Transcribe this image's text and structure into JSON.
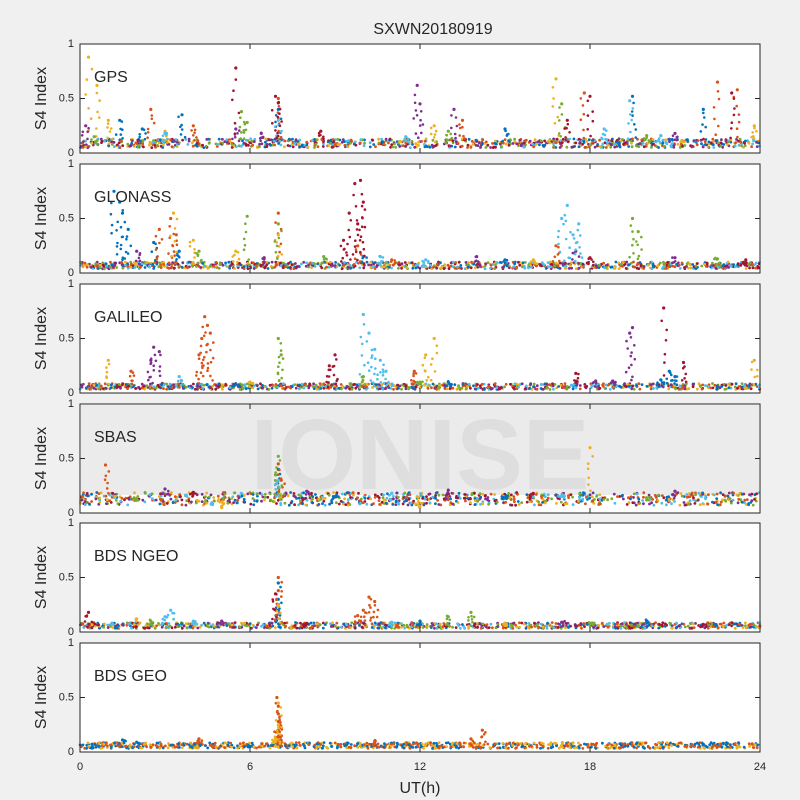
{
  "figure_title": "SXWN20180919",
  "x_axis_label": "UT(h)",
  "watermark": "IONISE",
  "colors": {
    "blue": "#0072BD",
    "orange": "#D95319",
    "yellow": "#EDB120",
    "purple": "#7E2F8E",
    "green": "#77AC30",
    "cyan": "#4DBEEE",
    "darkred": "#A2142F"
  },
  "chart_data": [
    {
      "type": "scatter",
      "title": "GPS",
      "ylabel": "S4 Index",
      "xlim": [
        0,
        24
      ],
      "ylim": [
        0,
        1
      ],
      "xticks": [
        0,
        6,
        12,
        18,
        24
      ],
      "yticks": [
        0,
        0.5,
        1
      ],
      "ytick_labels": [
        "0",
        "0.5",
        "1"
      ],
      "baseline": 0.09,
      "series": [
        {
          "color": "blue",
          "points": [
            [
              1.4,
              0.3
            ],
            [
              2.2,
              0.22
            ],
            [
              3.6,
              0.35
            ],
            [
              7.0,
              0.4
            ],
            [
              15.0,
              0.22
            ],
            [
              19.5,
              0.52
            ],
            [
              22.0,
              0.4
            ]
          ]
        },
        {
          "color": "orange",
          "points": [
            [
              2.5,
              0.4
            ],
            [
              4.0,
              0.25
            ],
            [
              7.0,
              0.5
            ],
            [
              13.5,
              0.3
            ],
            [
              17.8,
              0.55
            ],
            [
              22.5,
              0.65
            ],
            [
              23.2,
              0.58
            ]
          ]
        },
        {
          "color": "yellow",
          "points": [
            [
              0.3,
              0.88
            ],
            [
              0.6,
              0.62
            ],
            [
              1.0,
              0.3
            ],
            [
              3.0,
              0.2
            ],
            [
              12.5,
              0.25
            ],
            [
              16.8,
              0.68
            ],
            [
              23.8,
              0.25
            ]
          ]
        },
        {
          "color": "purple",
          "points": [
            [
              0.2,
              0.25
            ],
            [
              5.5,
              0.22
            ],
            [
              6.4,
              0.18
            ],
            [
              11.9,
              0.62
            ],
            [
              12.0,
              0.45
            ],
            [
              13.2,
              0.4
            ],
            [
              21.0,
              0.18
            ]
          ]
        },
        {
          "color": "green",
          "points": [
            [
              0.5,
              0.15
            ],
            [
              5.7,
              0.38
            ],
            [
              5.9,
              0.28
            ],
            [
              13.0,
              0.2
            ],
            [
              17.0,
              0.45
            ],
            [
              20.0,
              0.16
            ]
          ]
        },
        {
          "color": "cyan",
          "points": [
            [
              3.0,
              0.18
            ],
            [
              7.0,
              0.3
            ],
            [
              11.5,
              0.15
            ],
            [
              18.5,
              0.22
            ],
            [
              19.4,
              0.48
            ],
            [
              20.5,
              0.16
            ]
          ]
        },
        {
          "color": "darkred",
          "points": [
            [
              5.5,
              0.78
            ],
            [
              6.9,
              0.52
            ],
            [
              7.0,
              0.46
            ],
            [
              8.5,
              0.2
            ],
            [
              17.2,
              0.3
            ],
            [
              18.0,
              0.52
            ],
            [
              23.0,
              0.55
            ]
          ]
        }
      ]
    },
    {
      "type": "scatter",
      "title": "GLONASS",
      "ylabel": "S4 Index",
      "xlim": [
        0,
        24
      ],
      "ylim": [
        0,
        1
      ],
      "xticks": [
        0,
        6,
        12,
        18,
        24
      ],
      "yticks": [
        0,
        0.5,
        1
      ],
      "ytick_labels": [
        "0",
        "0.5",
        "1"
      ],
      "baseline": 0.07,
      "series": [
        {
          "color": "blue",
          "points": [
            [
              1.2,
              0.75
            ],
            [
              1.4,
              0.65
            ],
            [
              1.5,
              0.55
            ],
            [
              1.7,
              0.4
            ],
            [
              2.6,
              0.28
            ],
            [
              3.5,
              0.2
            ],
            [
              10.0,
              0.15
            ],
            [
              15.0,
              0.12
            ]
          ]
        },
        {
          "color": "orange",
          "points": [
            [
              2.8,
              0.4
            ],
            [
              3.2,
              0.5
            ],
            [
              3.4,
              0.35
            ],
            [
              7.0,
              0.55
            ],
            [
              9.8,
              0.25
            ],
            [
              11.0,
              0.12
            ],
            [
              16.8,
              0.25
            ]
          ]
        },
        {
          "color": "yellow",
          "points": [
            [
              3.3,
              0.55
            ],
            [
              4.0,
              0.3
            ],
            [
              5.5,
              0.2
            ],
            [
              7.0,
              0.35
            ],
            [
              16.0,
              0.12
            ]
          ]
        },
        {
          "color": "purple",
          "points": [
            [
              2.0,
              0.2
            ],
            [
              6.5,
              0.14
            ],
            [
              14.0,
              0.15
            ],
            [
              17.5,
              0.2
            ],
            [
              21.0,
              0.14
            ]
          ]
        },
        {
          "color": "green",
          "points": [
            [
              4.2,
              0.2
            ],
            [
              5.9,
              0.52
            ],
            [
              7.0,
              0.45
            ],
            [
              8.6,
              0.15
            ],
            [
              19.5,
              0.5
            ],
            [
              19.7,
              0.38
            ],
            [
              22.5,
              0.13
            ]
          ]
        },
        {
          "color": "cyan",
          "points": [
            [
              17.0,
              0.5
            ],
            [
              17.2,
              0.62
            ],
            [
              17.4,
              0.35
            ],
            [
              17.6,
              0.45
            ],
            [
              10.6,
              0.15
            ],
            [
              12.2,
              0.12
            ]
          ]
        },
        {
          "color": "darkred",
          "points": [
            [
              9.7,
              0.82
            ],
            [
              9.9,
              0.85
            ],
            [
              10.0,
              0.65
            ],
            [
              9.5,
              0.55
            ],
            [
              9.8,
              0.45
            ],
            [
              9.3,
              0.3
            ],
            [
              18.0,
              0.14
            ],
            [
              23.5,
              0.12
            ]
          ]
        }
      ]
    },
    {
      "type": "scatter",
      "title": "GALILEO",
      "ylabel": "S4 Index",
      "xlim": [
        0,
        24
      ],
      "ylim": [
        0,
        1
      ],
      "xticks": [
        0,
        6,
        12,
        18,
        24
      ],
      "yticks": [
        0,
        0.5,
        1
      ],
      "ytick_labels": [
        "0",
        "0.5",
        "1"
      ],
      "baseline": 0.06,
      "series": [
        {
          "color": "blue",
          "points": [
            [
              5.5,
              0.08
            ],
            [
              13.0,
              0.1
            ],
            [
              20.5,
              0.12
            ],
            [
              20.8,
              0.2
            ],
            [
              21.0,
              0.15
            ]
          ]
        },
        {
          "color": "orange",
          "points": [
            [
              4.4,
              0.7
            ],
            [
              4.5,
              0.62
            ],
            [
              4.3,
              0.5
            ],
            [
              4.2,
              0.35
            ],
            [
              4.6,
              0.55
            ],
            [
              1.8,
              0.2
            ],
            [
              11.8,
              0.2
            ]
          ]
        },
        {
          "color": "yellow",
          "points": [
            [
              1.0,
              0.3
            ],
            [
              12.5,
              0.5
            ],
            [
              12.2,
              0.35
            ],
            [
              23.8,
              0.3
            ],
            [
              6.0,
              0.1
            ]
          ]
        },
        {
          "color": "purple",
          "points": [
            [
              2.6,
              0.42
            ],
            [
              2.8,
              0.38
            ],
            [
              2.5,
              0.3
            ],
            [
              19.4,
              0.55
            ],
            [
              19.5,
              0.6
            ],
            [
              18.2,
              0.11
            ],
            [
              18.8,
              0.11
            ]
          ]
        },
        {
          "color": "green",
          "points": [
            [
              7.0,
              0.5
            ],
            [
              7.1,
              0.35
            ],
            [
              10.0,
              0.15
            ],
            [
              12.0,
              0.1
            ]
          ]
        },
        {
          "color": "cyan",
          "points": [
            [
              10.0,
              0.72
            ],
            [
              10.2,
              0.55
            ],
            [
              10.4,
              0.4
            ],
            [
              10.6,
              0.3
            ],
            [
              10.8,
              0.2
            ],
            [
              3.5,
              0.15
            ]
          ]
        },
        {
          "color": "darkred",
          "points": [
            [
              9.0,
              0.35
            ],
            [
              8.8,
              0.25
            ],
            [
              17.5,
              0.18
            ],
            [
              20.6,
              0.78
            ],
            [
              21.3,
              0.28
            ]
          ]
        }
      ]
    },
    {
      "type": "scatter",
      "title": "SBAS",
      "ylabel": "S4 Index",
      "xlim": [
        0,
        24
      ],
      "ylim": [
        0,
        1
      ],
      "xticks": [
        0,
        6,
        12,
        18,
        24
      ],
      "yticks": [
        0,
        0.5,
        1
      ],
      "ytick_labels": [
        "0",
        "0.5",
        "1"
      ],
      "baseline": 0.13,
      "series": [
        {
          "color": "blue",
          "points": [
            [
              7.0,
              0.4
            ],
            [
              9.0,
              0.15
            ],
            [
              15.0,
              0.14
            ]
          ]
        },
        {
          "color": "orange",
          "points": [
            [
              0.9,
              0.44
            ],
            [
              7.0,
              0.45
            ],
            [
              7.1,
              0.3
            ]
          ]
        },
        {
          "color": "yellow",
          "points": [
            [
              18.0,
              0.6
            ],
            [
              5.0,
              0.05
            ],
            [
              12.0,
              0.06
            ]
          ]
        },
        {
          "color": "purple",
          "points": [
            [
              3.0,
              0.22
            ],
            [
              8.0,
              0.2
            ],
            [
              13.0,
              0.21
            ],
            [
              21.0,
              0.2
            ]
          ]
        },
        {
          "color": "green",
          "points": [
            [
              7.0,
              0.52
            ],
            [
              6.9,
              0.35
            ],
            [
              2.0,
              0.12
            ],
            [
              20.0,
              0.12
            ]
          ]
        },
        {
          "color": "cyan",
          "points": [
            [
              7.0,
              0.3
            ],
            [
              11.0,
              0.18
            ],
            [
              17.0,
              0.16
            ]
          ]
        },
        {
          "color": "darkred",
          "points": [
            [
              4.0,
              0.19
            ],
            [
              16.0,
              0.18
            ]
          ]
        }
      ]
    },
    {
      "type": "scatter",
      "title": "BDS NGEO",
      "ylabel": "S4 Index",
      "xlim": [
        0,
        24
      ],
      "ylim": [
        0,
        1
      ],
      "xticks": [
        0,
        6,
        12,
        18,
        24
      ],
      "yticks": [
        0,
        0.5,
        1
      ],
      "ytick_labels": [
        "0",
        "0.5",
        "1"
      ],
      "baseline": 0.06,
      "series": [
        {
          "color": "blue",
          "points": [
            [
              7.0,
              0.45
            ],
            [
              7.0,
              0.3
            ],
            [
              7.0,
              0.2
            ],
            [
              12.0,
              0.1
            ],
            [
              20.0,
              0.1
            ]
          ]
        },
        {
          "color": "orange",
          "points": [
            [
              7.0,
              0.5
            ],
            [
              7.0,
              0.38
            ],
            [
              10.2,
              0.32
            ],
            [
              10.4,
              0.28
            ],
            [
              10.0,
              0.2
            ],
            [
              9.8,
              0.15
            ]
          ]
        },
        {
          "color": "yellow",
          "points": [
            [
              2.0,
              0.12
            ],
            [
              7.0,
              0.25
            ],
            [
              15.0,
              0.08
            ]
          ]
        },
        {
          "color": "purple",
          "points": [
            [
              5.0,
              0.1
            ],
            [
              17.0,
              0.09
            ]
          ]
        },
        {
          "color": "green",
          "points": [
            [
              2.5,
              0.1
            ],
            [
              13.8,
              0.18
            ],
            [
              13.0,
              0.14
            ],
            [
              18.0,
              0.08
            ]
          ]
        },
        {
          "color": "cyan",
          "points": [
            [
              3.0,
              0.14
            ],
            [
              3.2,
              0.2
            ],
            [
              4.0,
              0.1
            ],
            [
              11.0,
              0.09
            ]
          ]
        },
        {
          "color": "darkred",
          "points": [
            [
              0.3,
              0.18
            ],
            [
              6.9,
              0.35
            ],
            [
              8.0,
              0.08
            ],
            [
              22.0,
              0.07
            ]
          ]
        }
      ]
    },
    {
      "type": "scatter",
      "title": "BDS GEO",
      "ylabel": "S4 Index",
      "xlim": [
        0,
        24
      ],
      "ylim": [
        0,
        1
      ],
      "xticks": [
        0,
        6,
        12,
        18,
        24
      ],
      "yticks": [
        0,
        0.5,
        1
      ],
      "ytick_labels": [
        "0",
        "0.5",
        "1"
      ],
      "baseline": 0.06,
      "series": [
        {
          "color": "blue",
          "points": [
            [
              1.5,
              0.11
            ],
            [
              2.0,
              0.09
            ]
          ]
        },
        {
          "color": "orange",
          "points": [
            [
              6.95,
              0.5
            ],
            [
              7.0,
              0.42
            ],
            [
              7.0,
              0.35
            ],
            [
              7.0,
              0.28
            ],
            [
              7.0,
              0.2
            ],
            [
              7.05,
              0.15
            ],
            [
              4.2,
              0.12
            ],
            [
              10.4,
              0.1
            ],
            [
              14.2,
              0.2
            ],
            [
              13.8,
              0.12
            ]
          ]
        },
        {
          "color": "yellow",
          "points": [
            [
              7.0,
              0.45
            ],
            [
              7.0,
              0.25
            ],
            [
              6.9,
              0.12
            ]
          ]
        }
      ]
    }
  ]
}
